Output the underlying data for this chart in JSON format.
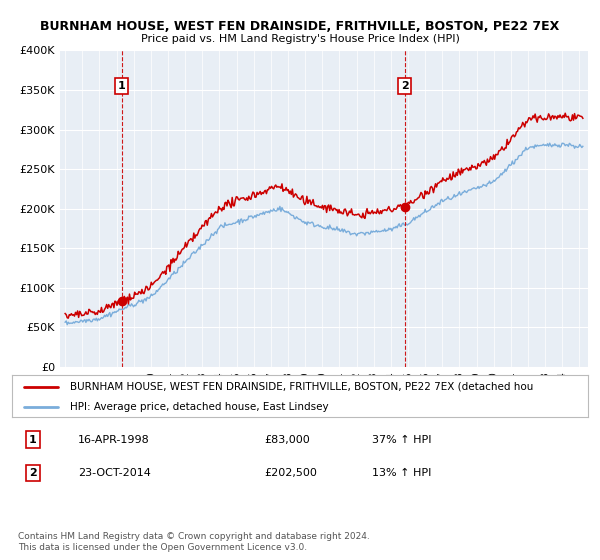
{
  "title_line1": "BURNHAM HOUSE, WEST FEN DRAINSIDE, FRITHVILLE, BOSTON, PE22 7EX",
  "title_line2": "Price paid vs. HM Land Registry's House Price Index (HPI)",
  "ylim": [
    0,
    400000
  ],
  "yticks": [
    0,
    50000,
    100000,
    150000,
    200000,
    250000,
    300000,
    350000,
    400000
  ],
  "ytick_labels": [
    "£0",
    "£50K",
    "£100K",
    "£150K",
    "£200K",
    "£250K",
    "£300K",
    "£350K",
    "£400K"
  ],
  "purchase1_date_num": 1998.29,
  "purchase1_price": 83000,
  "purchase1_label": "1",
  "purchase1_text": "16-APR-1998",
  "purchase1_amount": "£83,000",
  "purchase1_hpi": "37% ↑ HPI",
  "purchase2_date_num": 2014.81,
  "purchase2_price": 202500,
  "purchase2_label": "2",
  "purchase2_text": "23-OCT-2014",
  "purchase2_amount": "£202,500",
  "purchase2_hpi": "13% ↑ HPI",
  "red_line_color": "#cc0000",
  "blue_line_color": "#7aaddb",
  "vline_color": "#cc0000",
  "marker_color": "#cc0000",
  "legend_label_red": "BURNHAM HOUSE, WEST FEN DRAINSIDE, FRITHVILLE, BOSTON, PE22 7EX (detached hou",
  "legend_label_blue": "HPI: Average price, detached house, East Lindsey",
  "footnote": "Contains HM Land Registry data © Crown copyright and database right 2024.\nThis data is licensed under the Open Government Licence v3.0.",
  "background_color": "#ffffff",
  "plot_bg_color": "#e8eef5",
  "grid_color": "#ffffff"
}
